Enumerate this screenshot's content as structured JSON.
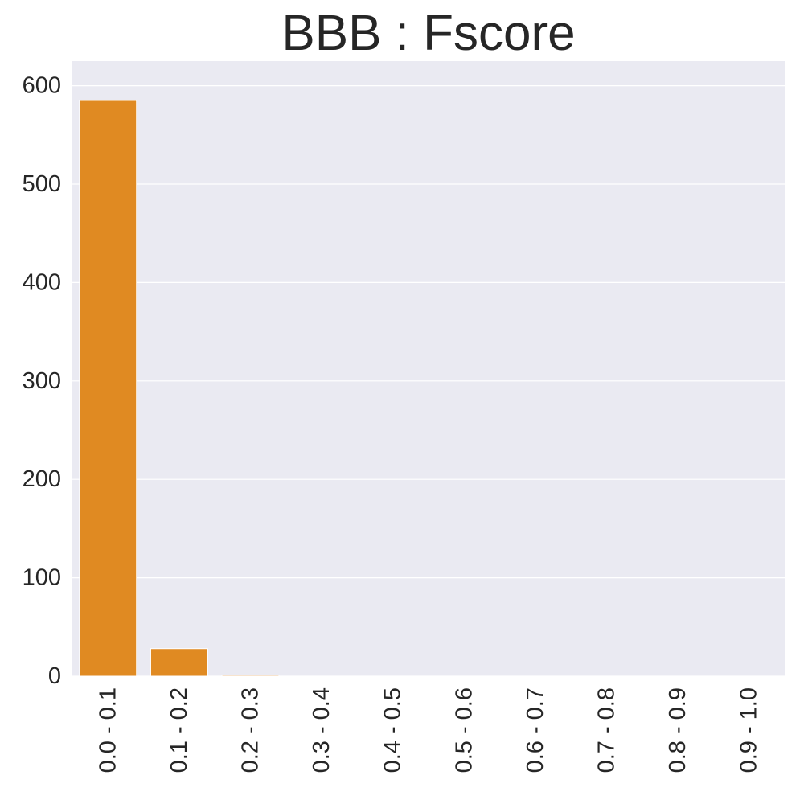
{
  "chart_data": {
    "type": "bar",
    "title": "BBB : Fscore",
    "xlabel": "",
    "ylabel": "",
    "categories": [
      "0.0 - 0.1",
      "0.1 - 0.2",
      "0.2 - 0.3",
      "0.3 - 0.4",
      "0.4 - 0.5",
      "0.5 - 0.6",
      "0.6 - 0.7",
      "0.7 - 0.8",
      "0.8 - 0.9",
      "0.9 - 1.0"
    ],
    "values": [
      585,
      28,
      1,
      0,
      0,
      0,
      0,
      0,
      0,
      0
    ],
    "ylim": [
      0,
      625
    ],
    "yticks": [
      0,
      100,
      200,
      300,
      400,
      500,
      600
    ],
    "grid": true,
    "bar_color": "#e08a22",
    "background_color": "#eaeaf2"
  }
}
